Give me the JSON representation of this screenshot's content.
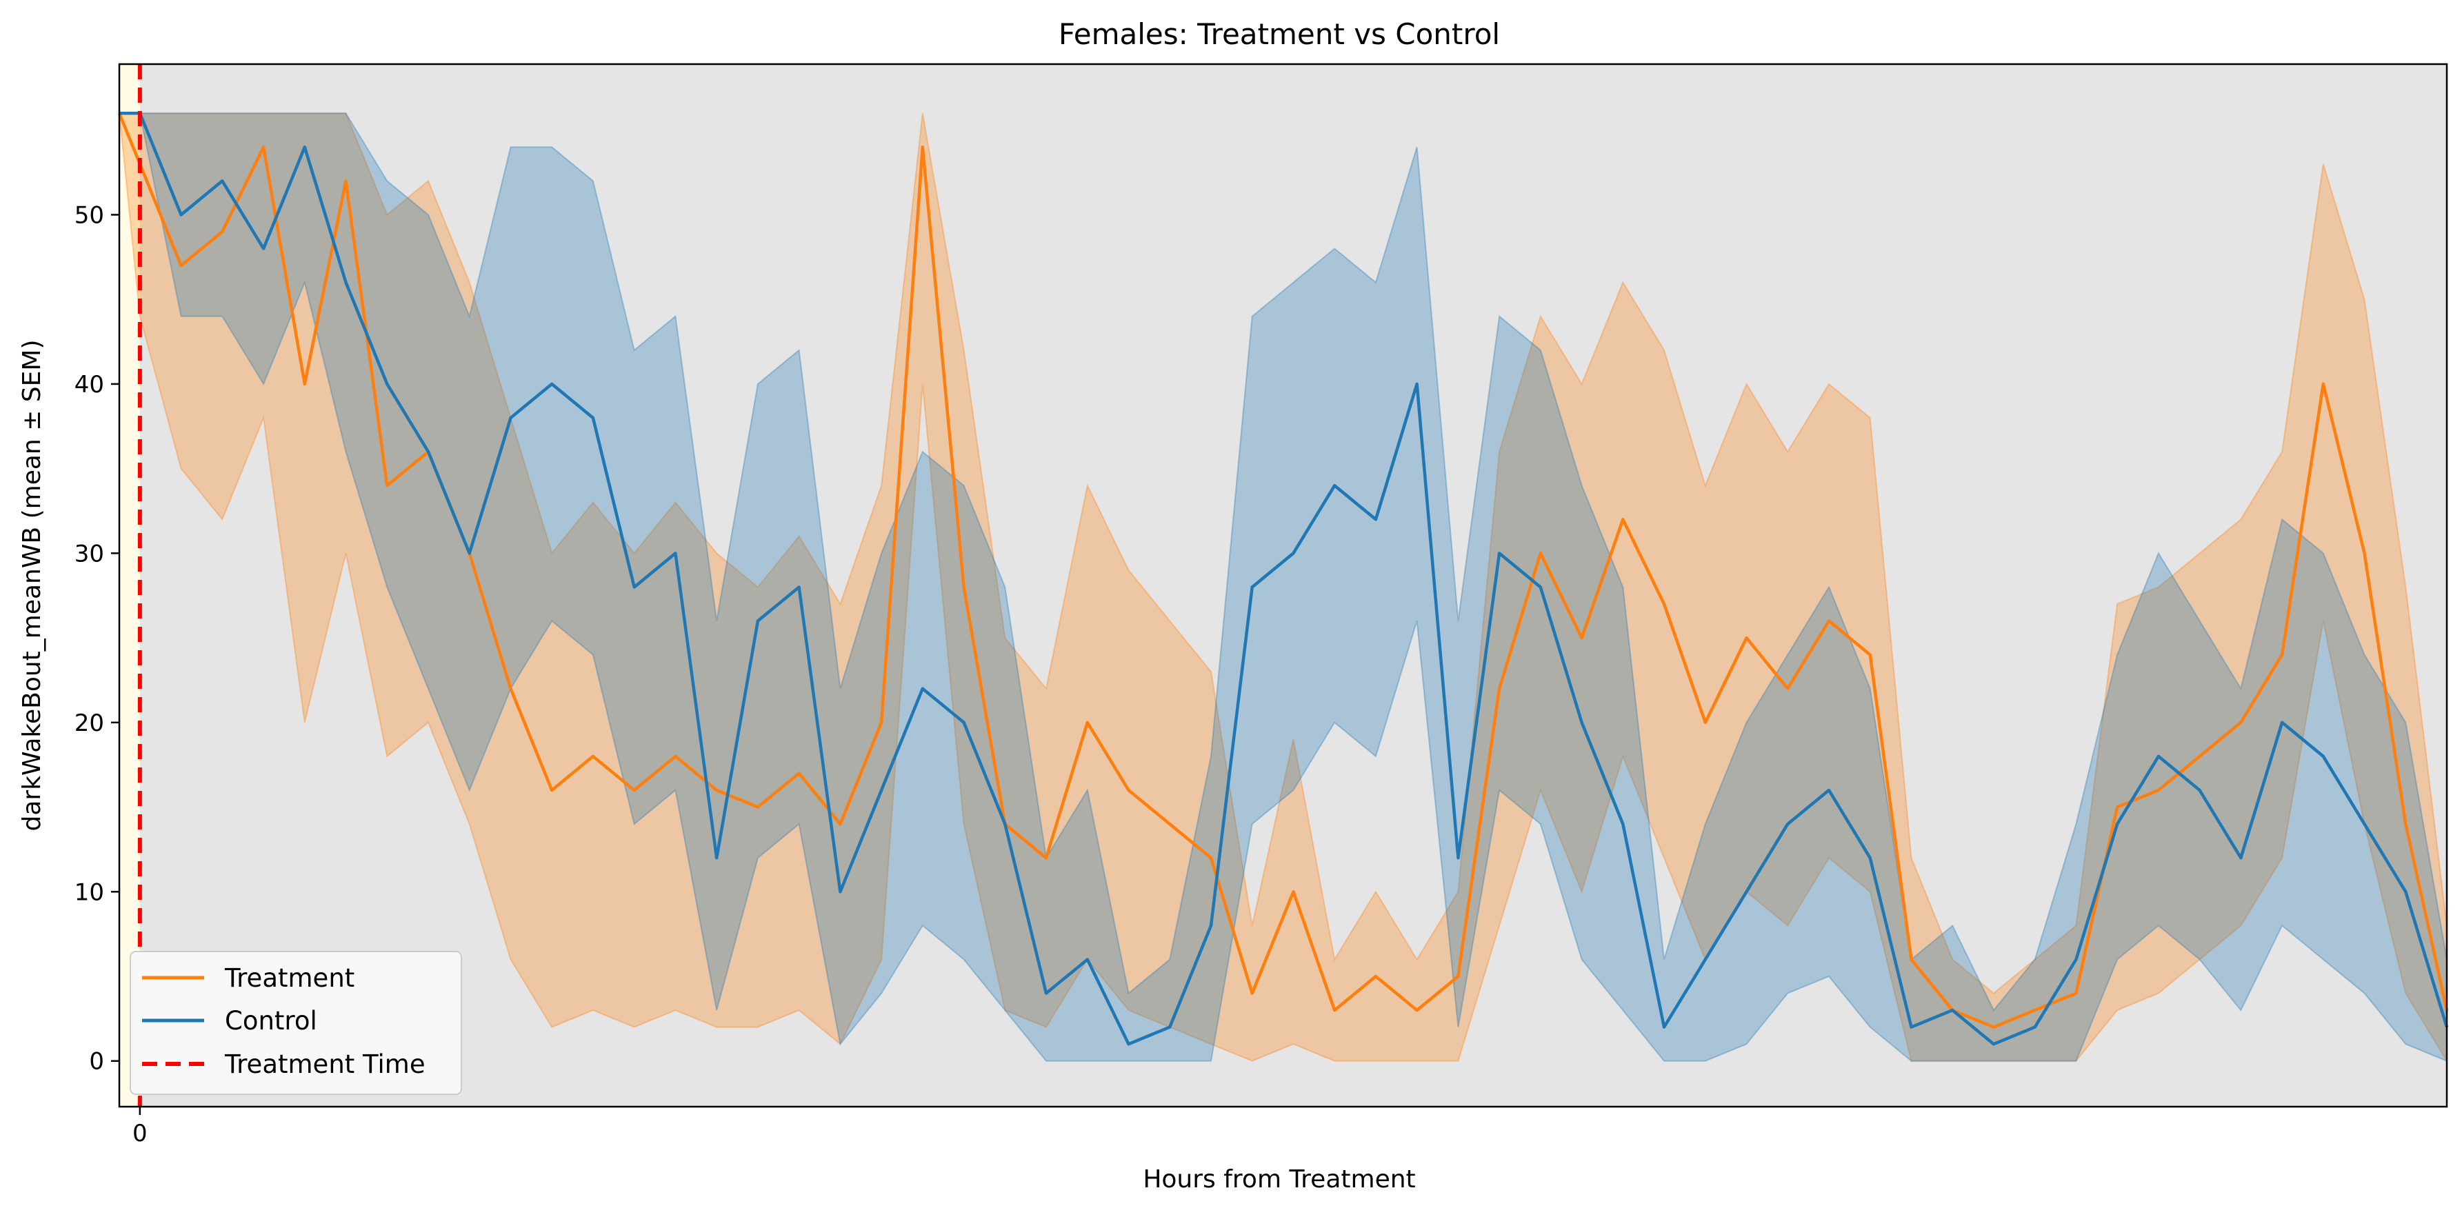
{
  "chart_data": {
    "type": "line",
    "title": "Females: Treatment vs Control",
    "xlabel": "Hours from Treatment",
    "ylabel": "darkWakeBout_meanWB (mean ± SEM)",
    "x_range": [
      -1,
      112
    ],
    "ylim": [
      -2.7,
      58.9
    ],
    "x_ticks": [
      0
    ],
    "y_ticks": [
      0,
      10,
      20,
      30,
      40,
      50
    ],
    "background": "#e5e5e5",
    "grid": false,
    "legend_position": "lower-left",
    "treatment_time": 0,
    "series": [
      {
        "name": "Treatment",
        "color": "#ff7f0e",
        "x": [
          -1,
          0,
          2,
          4,
          6,
          8,
          10,
          12,
          14,
          16,
          18,
          20,
          22,
          24,
          26,
          28,
          30,
          32,
          34,
          36,
          38,
          40,
          42,
          44,
          46,
          48,
          50,
          52,
          54,
          56,
          58,
          60,
          62,
          64,
          66,
          68,
          70,
          72,
          74,
          76,
          78,
          80,
          82,
          84,
          86,
          88,
          90,
          92,
          94,
          96,
          98,
          100,
          102,
          104,
          106,
          108,
          110,
          112
        ],
        "mean": [
          56,
          53,
          47,
          49,
          54,
          40,
          52,
          34,
          36,
          30,
          22,
          16,
          18,
          16,
          18,
          16,
          15,
          17,
          14,
          20,
          54,
          28,
          14,
          12,
          20,
          16,
          14,
          12,
          4,
          10,
          3,
          5,
          3,
          5,
          22,
          30,
          25,
          32,
          27,
          20,
          25,
          22,
          26,
          24,
          6,
          3,
          2,
          3,
          4,
          15,
          16,
          18,
          20,
          24,
          40,
          30,
          14,
          3
        ],
        "lower": [
          56,
          44,
          35,
          32,
          38,
          20,
          30,
          18,
          20,
          14,
          6,
          2,
          3,
          2,
          3,
          2,
          2,
          3,
          1,
          6,
          40,
          14,
          3,
          2,
          6,
          3,
          2,
          1,
          0,
          1,
          0,
          0,
          0,
          0,
          8,
          16,
          10,
          18,
          12,
          6,
          10,
          8,
          12,
          10,
          0,
          0,
          0,
          0,
          0,
          3,
          4,
          6,
          8,
          12,
          26,
          14,
          4,
          0
        ],
        "upper": [
          56,
          56,
          56,
          56,
          56,
          56,
          56,
          50,
          52,
          46,
          38,
          30,
          33,
          30,
          33,
          30,
          28,
          31,
          27,
          34,
          56,
          42,
          25,
          22,
          34,
          29,
          26,
          23,
          8,
          19,
          6,
          10,
          6,
          10,
          36,
          44,
          40,
          46,
          42,
          34,
          40,
          36,
          40,
          38,
          12,
          6,
          4,
          6,
          8,
          27,
          28,
          30,
          32,
          36,
          53,
          45,
          28,
          8
        ]
      },
      {
        "name": "Control",
        "color": "#1f77b4",
        "x": [
          -1,
          0,
          2,
          4,
          6,
          8,
          10,
          12,
          14,
          16,
          18,
          20,
          22,
          24,
          26,
          28,
          30,
          32,
          34,
          36,
          38,
          40,
          42,
          44,
          46,
          48,
          50,
          52,
          54,
          56,
          58,
          60,
          62,
          64,
          66,
          68,
          70,
          72,
          74,
          76,
          78,
          80,
          82,
          84,
          86,
          88,
          90,
          92,
          94,
          96,
          98,
          100,
          102,
          104,
          106,
          108,
          110,
          112
        ],
        "mean": [
          56,
          56,
          50,
          52,
          48,
          54,
          46,
          40,
          36,
          30,
          38,
          40,
          38,
          28,
          30,
          12,
          26,
          28,
          10,
          16,
          22,
          20,
          14,
          4,
          6,
          1,
          2,
          8,
          28,
          30,
          34,
          32,
          40,
          12,
          30,
          28,
          20,
          14,
          2,
          6,
          10,
          14,
          16,
          12,
          2,
          3,
          1,
          2,
          6,
          14,
          18,
          16,
          12,
          20,
          18,
          14,
          10,
          2
        ],
        "lower": [
          56,
          56,
          44,
          44,
          40,
          46,
          36,
          28,
          22,
          16,
          22,
          26,
          24,
          14,
          16,
          3,
          12,
          14,
          1,
          4,
          8,
          6,
          3,
          0,
          0,
          0,
          0,
          0,
          14,
          16,
          20,
          18,
          26,
          2,
          16,
          14,
          6,
          3,
          0,
          0,
          1,
          4,
          5,
          2,
          0,
          0,
          0,
          0,
          0,
          6,
          8,
          6,
          3,
          8,
          6,
          4,
          1,
          0
        ],
        "upper": [
          56,
          56,
          56,
          56,
          56,
          56,
          56,
          52,
          50,
          44,
          54,
          54,
          52,
          42,
          44,
          26,
          40,
          42,
          22,
          30,
          36,
          34,
          28,
          12,
          16,
          4,
          6,
          18,
          44,
          46,
          48,
          46,
          54,
          26,
          44,
          42,
          34,
          28,
          6,
          14,
          20,
          24,
          28,
          22,
          6,
          8,
          3,
          6,
          14,
          24,
          30,
          26,
          22,
          32,
          30,
          24,
          20,
          6
        ]
      }
    ],
    "legend": [
      {
        "label": "Treatment",
        "color": "#ff7f0e",
        "style": "solid"
      },
      {
        "label": "Control",
        "color": "#1f77b4",
        "style": "solid"
      },
      {
        "label": "Treatment Time",
        "color": "#ff0000",
        "style": "dashed"
      }
    ]
  }
}
